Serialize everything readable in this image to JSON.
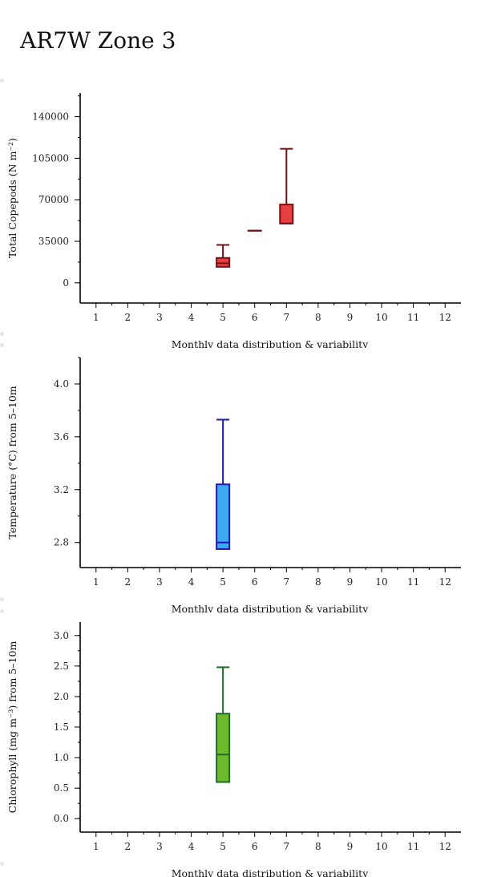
{
  "page": {
    "title": "AR7W Zone 3"
  },
  "chart_data": [
    {
      "type": "box",
      "ylabel": "Total Copepods (N m⁻²)",
      "xlabel": "Monthly data distribution & variability",
      "x_ticks": [
        "1",
        "2",
        "3",
        "4",
        "5",
        "6",
        "7",
        "8",
        "9",
        "10",
        "11",
        "12"
      ],
      "xlim": [
        0.5,
        12.5
      ],
      "ylim": [
        -17000,
        160000
      ],
      "yticks": [
        0,
        35000,
        70000,
        105000,
        140000
      ],
      "ytick_labels": [
        "0",
        "35000",
        "70000",
        "105000",
        "140000"
      ],
      "minor_step": 17500,
      "colors": {
        "fill": "#e84040",
        "stroke": "#7a0e14"
      },
      "boxes": [
        {
          "month": 5,
          "whisker_low": 13500,
          "q1": 13500,
          "median": 16500,
          "q3": 21000,
          "whisker_high": 32000
        },
        {
          "month": 6,
          "whisker_low": 44000,
          "q1": 44000,
          "median": 44000,
          "q3": 44000,
          "whisker_high": 44000
        },
        {
          "month": 7,
          "whisker_low": 50000,
          "q1": 50000,
          "median": 50000,
          "q3": 66000,
          "whisker_high": 113000
        }
      ]
    },
    {
      "type": "box",
      "ylabel": "Temperature (°C) from 5–10m",
      "xlabel": "Monthly data distribution & variability",
      "x_ticks": [
        "1",
        "2",
        "3",
        "4",
        "5",
        "6",
        "7",
        "8",
        "9",
        "10",
        "11",
        "12"
      ],
      "xlim": [
        0.5,
        12.5
      ],
      "ylim": [
        2.61,
        4.2
      ],
      "yticks": [
        2.8,
        3.2,
        3.6,
        4.0
      ],
      "ytick_labels": [
        "2.8",
        "3.2",
        "3.6",
        "4.0"
      ],
      "minor_step": 0.2,
      "colors": {
        "fill": "#3fa9f5",
        "stroke": "#1a1ab8"
      },
      "boxes": [
        {
          "month": 5,
          "whisker_low": 2.75,
          "q1": 2.75,
          "median": 2.8,
          "q3": 3.24,
          "whisker_high": 3.73
        }
      ]
    },
    {
      "type": "box",
      "ylabel": "Chlorophyll (mg m⁻³) from 5–10m",
      "xlabel": "Monthly data distribution & variability",
      "x_ticks": [
        "1",
        "2",
        "3",
        "4",
        "5",
        "6",
        "7",
        "8",
        "9",
        "10",
        "11",
        "12"
      ],
      "xlim": [
        0.5,
        12.5
      ],
      "ylim": [
        -0.22,
        3.22
      ],
      "yticks": [
        0.0,
        0.5,
        1.0,
        1.5,
        2.0,
        2.5,
        3.0
      ],
      "ytick_labels": [
        "0.0",
        "0.5",
        "1.0",
        "1.5",
        "2.0",
        "2.5",
        "3.0"
      ],
      "minor_step": 0.25,
      "colors": {
        "fill": "#6fba2c",
        "stroke": "#1f6b2a"
      },
      "boxes": [
        {
          "month": 5,
          "whisker_low": 0.6,
          "q1": 0.6,
          "median": 1.05,
          "q3": 1.72,
          "whisker_high": 2.48
        }
      ]
    }
  ]
}
